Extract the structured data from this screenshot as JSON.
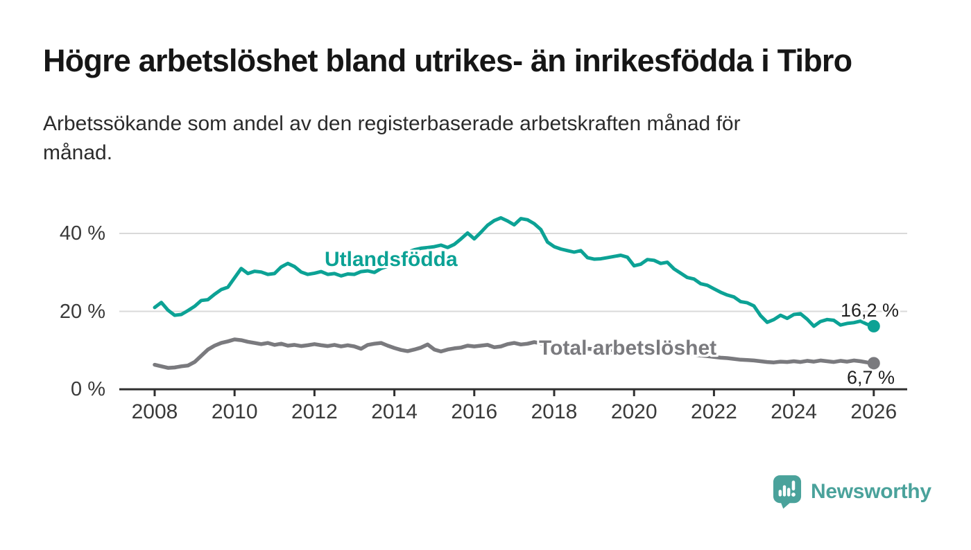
{
  "header": {
    "title": "Högre arbetslöshet bland utrikes- än inrikesfödda i Tibro",
    "subtitle": "Arbetssökande som andel av den registerbaserade arbetskraften månad för månad.",
    "subtitle_lines": [
      "Arbetssökande som andel av den registerbaserade arbetskraften månad för",
      "månad."
    ]
  },
  "chart_data": {
    "type": "line",
    "title": "Högre arbetslöshet bland utrikes- än inrikesfödda i Tibro",
    "subtitle": "Arbetssökande som andel av den registerbaserade arbetskraften månad för månad.",
    "unit": "%",
    "x_start": 2008.0,
    "x_step_years": 0.1666667,
    "xlim": [
      2007.1,
      2026.85
    ],
    "ylim": [
      0,
      46
    ],
    "grid": "horizontal",
    "legend_position": "inline-labels",
    "x_ticks": [
      2008,
      2010,
      2012,
      2014,
      2016,
      2018,
      2020,
      2022,
      2024,
      2026
    ],
    "y_ticks": [
      {
        "value": 0,
        "label": "0 %"
      },
      {
        "value": 20,
        "label": "20 %"
      },
      {
        "value": 40,
        "label": "40 %"
      }
    ],
    "series": [
      {
        "name": "Utlandsfödda",
        "color": "#0ca295",
        "end_value": 16.2,
        "end_label": "16,2 %",
        "values": [
          21.0,
          22.3,
          20.3,
          19.0,
          19.2,
          20.2,
          21.3,
          22.8,
          23.0,
          24.4,
          25.6,
          26.2,
          28.6,
          31.0,
          29.7,
          30.3,
          30.1,
          29.5,
          29.7,
          31.4,
          32.3,
          31.5,
          30.1,
          29.5,
          29.8,
          30.2,
          29.5,
          29.7,
          29.1,
          29.6,
          29.5,
          30.2,
          30.4,
          30.0,
          31.0,
          31.6,
          32.4,
          33.7,
          35.2,
          35.8,
          36.2,
          36.4,
          36.6,
          37.0,
          36.4,
          37.2,
          38.6,
          40.1,
          38.6,
          40.3,
          42.1,
          43.3,
          44.0,
          43.2,
          42.2,
          43.8,
          43.5,
          42.5,
          41.0,
          37.8,
          36.6,
          36.0,
          35.6,
          35.2,
          35.6,
          33.8,
          33.4,
          33.5,
          33.8,
          34.1,
          34.4,
          33.9,
          31.7,
          32.1,
          33.3,
          33.1,
          32.3,
          32.6,
          30.9,
          29.8,
          28.7,
          28.3,
          27.1,
          26.7,
          25.8,
          24.9,
          24.2,
          23.7,
          22.5,
          22.2,
          21.4,
          18.9,
          17.2,
          17.9,
          19.0,
          18.2,
          19.2,
          19.4,
          18.0,
          16.2,
          17.4,
          17.9,
          17.7,
          16.5,
          16.9,
          17.1,
          17.5,
          16.7,
          16.2
        ]
      },
      {
        "name": "Total arbetslöshet",
        "color": "#7a7a7e",
        "end_value": 6.7,
        "end_label": "6,7 %",
        "values": [
          6.3,
          5.9,
          5.5,
          5.6,
          5.9,
          6.1,
          7.0,
          8.6,
          10.2,
          11.2,
          11.9,
          12.3,
          12.8,
          12.6,
          12.2,
          11.9,
          11.6,
          11.9,
          11.4,
          11.7,
          11.2,
          11.4,
          11.1,
          11.3,
          11.6,
          11.3,
          11.1,
          11.4,
          11.0,
          11.3,
          11.0,
          10.4,
          11.4,
          11.7,
          11.9,
          11.2,
          10.6,
          10.1,
          9.8,
          10.2,
          10.7,
          11.5,
          10.2,
          9.7,
          10.2,
          10.5,
          10.7,
          11.2,
          11.0,
          11.2,
          11.4,
          10.8,
          11.0,
          11.6,
          11.9,
          11.5,
          11.7,
          12.1,
          11.8,
          11.5,
          11.3,
          11.1,
          11.0,
          10.8,
          10.6,
          10.4,
          10.3,
          10.1,
          10.0,
          10.2,
          10.1,
          10.0,
          10.3,
          10.6,
          10.8,
          10.6,
          10.4,
          10.1,
          9.8,
          9.4,
          9.1,
          8.9,
          8.7,
          8.5,
          8.3,
          8.1,
          8.0,
          7.8,
          7.6,
          7.5,
          7.4,
          7.2,
          7.0,
          6.9,
          7.1,
          7.0,
          7.2,
          7.0,
          7.3,
          7.1,
          7.4,
          7.2,
          7.0,
          7.3,
          7.1,
          7.4,
          7.2,
          6.9,
          6.7
        ]
      }
    ]
  },
  "colors": {
    "accent_teal": "#0ca295",
    "line_gray": "#7a7a7e",
    "gridline": "#d9d9d9",
    "axis": "#2f2f2f",
    "tick_text": "#3a3a3a",
    "brand_teal": "#4aa29b"
  },
  "footer": {
    "brand": "Newsworthy"
  }
}
